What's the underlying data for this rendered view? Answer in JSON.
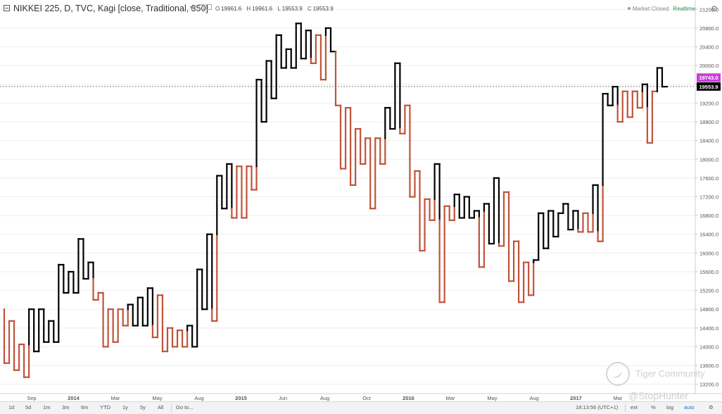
{
  "header": {
    "title": "NIKKEI 225, D, TVC, Kagi [close, Traditional, 350]",
    "ohlc": [
      {
        "key": "O",
        "value": "19961.6"
      },
      {
        "key": "H",
        "value": "19961.6"
      },
      {
        "key": "L",
        "value": "19553.9"
      },
      {
        "key": "C",
        "value": "19553.9"
      }
    ],
    "market_status": "Market Closed",
    "realtime_label": "Realtime"
  },
  "price_labels": {
    "alert": "19743.0",
    "last": "19553.9",
    "alert_color": "#c93fd9",
    "last_color": "#000000"
  },
  "toolbar": {
    "ranges": [
      "1d",
      "5d",
      "1m",
      "3m",
      "6m",
      "YTD",
      "1y",
      "5y",
      "All"
    ],
    "goto": "Go to...",
    "clock": "18:13:56 (UTC+1)",
    "ext": "ext",
    "percent": "%",
    "log": "log",
    "auto": "auto"
  },
  "watermark": {
    "community": "Tiger Community",
    "author": "@StopHunter"
  },
  "colors": {
    "yang": "#000000",
    "yin": "#c0533a",
    "grid": "#eeeeee"
  },
  "chart_data": {
    "type": "kagi",
    "ylim": [
      13000,
      21400
    ],
    "yticks": [
      13200,
      13600,
      14000,
      14400,
      14800,
      15200,
      15600,
      16000,
      16400,
      16800,
      17200,
      17600,
      18000,
      18400,
      18800,
      19200,
      19600,
      20000,
      20400,
      20800,
      21200
    ],
    "x_labels": [
      "Sep",
      "2014",
      "Mar",
      "May",
      "Aug",
      "2015",
      "Jun",
      "Aug",
      "Oct",
      "2016",
      "Mar",
      "May",
      "Aug",
      "2017",
      "Mar"
    ],
    "bold_x_labels": [
      "2014",
      "2015",
      "2016",
      "2017"
    ],
    "reference_line": 19553.9,
    "kagi_levels": [
      14800,
      13650,
      14550,
      13500,
      14050,
      13350,
      14800,
      13900,
      14800,
      14100,
      14550,
      14100,
      15750,
      15150,
      15600,
      15150,
      16300,
      15450,
      15800,
      15000,
      15150,
      14000,
      14800,
      14100,
      14800,
      14450,
      14900,
      14450,
      15050,
      14450,
      15250,
      14200,
      15100,
      13900,
      14400,
      14000,
      14350,
      14000,
      14450,
      14000,
      15650,
      14800,
      16400,
      14550,
      17650,
      16950,
      17900,
      16750,
      17850,
      16750,
      17850,
      17350,
      19700,
      18800,
      20100,
      19300,
      20650,
      19950,
      20350,
      19950,
      20900,
      20150,
      20750,
      20050,
      20650,
      19700,
      20800,
      20300,
      19150,
      17800,
      19100,
      17450,
      18650,
      17900,
      18450,
      16950,
      18450,
      17900,
      19100,
      18650,
      20050,
      18550,
      19150,
      17200,
      17750,
      16050,
      17150,
      16700,
      17900,
      14950,
      17000,
      16700,
      17250,
      16750,
      17200,
      16750,
      16900,
      15700,
      17050,
      16200,
      17600,
      16150,
      17300,
      15400,
      16250,
      14950,
      15800,
      15100,
      15850,
      16850,
      16100,
      16900,
      16350,
      16850,
      17050,
      16500,
      16900,
      16450,
      16850,
      16450,
      17450,
      16250,
      19400,
      19150,
      19550,
      18800,
      19450,
      18900,
      19450,
      19100,
      19600,
      18350,
      19450,
      19950,
      19550
    ]
  }
}
